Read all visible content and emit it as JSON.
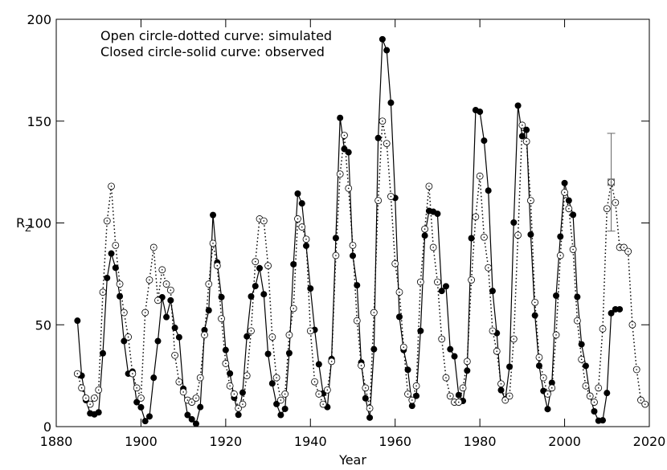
{
  "chart_data": {
    "type": "line",
    "annotations": [
      "Open circle-dotted curve: simulated",
      "Closed circle-solid curve: observed"
    ],
    "xlabel": "Year",
    "ylabel": "R",
    "ylabel_sub": "Z",
    "xlim": [
      1880,
      2020
    ],
    "xticks": [
      1880,
      1900,
      1920,
      1940,
      1960,
      1980,
      2000,
      2020
    ],
    "ylim": [
      0,
      200
    ],
    "yticks": [
      0,
      50,
      100,
      150,
      200
    ],
    "color": "#000000",
    "series": [
      {
        "marker": "filled",
        "line": "solid",
        "x": [
          1885,
          1886,
          1887,
          1888,
          1889,
          1890,
          1891,
          1892,
          1893,
          1894,
          1895,
          1896,
          1897,
          1898,
          1899,
          1900,
          1901,
          1902,
          1903,
          1904,
          1905,
          1906,
          1907,
          1908,
          1909,
          1910,
          1911,
          1912,
          1913,
          1914,
          1915,
          1916,
          1917,
          1918,
          1919,
          1920,
          1921,
          1922,
          1923,
          1924,
          1925,
          1926,
          1927,
          1928,
          1929,
          1930,
          1931,
          1932,
          1933,
          1934,
          1935,
          1936,
          1937,
          1938,
          1939,
          1940,
          1941,
          1942,
          1943,
          1944,
          1945,
          1946,
          1947,
          1948,
          1949,
          1950,
          1951,
          1952,
          1953,
          1954,
          1955,
          1956,
          1957,
          1958,
          1959,
          1960,
          1961,
          1962,
          1963,
          1964,
          1965,
          1966,
          1967,
          1968,
          1969,
          1970,
          1971,
          1972,
          1973,
          1974,
          1975,
          1976,
          1977,
          1978,
          1979,
          1980,
          1981,
          1982,
          1983,
          1984,
          1985,
          1986,
          1987,
          1988,
          1989,
          1990,
          1991,
          1992,
          1993,
          1994,
          1995,
          1996,
          1997,
          1998,
          1999,
          2000,
          2001,
          2002,
          2003,
          2004,
          2005,
          2006,
          2007,
          2008,
          2009,
          2010,
          2011,
          2012,
          2013
        ],
        "values": [
          52,
          25,
          13,
          6.5,
          6,
          7,
          36,
          73,
          85,
          78,
          64,
          42,
          26,
          27,
          12,
          9.5,
          2.7,
          5,
          24,
          42,
          63.5,
          53.8,
          62,
          48.5,
          43.9,
          18.6,
          5.7,
          3.6,
          1.4,
          9.6,
          47.4,
          57.1,
          103.9,
          80.6,
          63.6,
          37.6,
          26.1,
          14.2,
          5.8,
          16.7,
          44.3,
          63.9,
          69,
          77.8,
          65,
          35.7,
          21.2,
          11.1,
          5.7,
          8.7,
          36.1,
          79.7,
          114.4,
          109.6,
          88.8,
          67.8,
          47.5,
          30.6,
          16.3,
          9.6,
          33.2,
          92.6,
          151.6,
          136.3,
          134.7,
          83.9,
          69.4,
          31.5,
          13.9,
          4.4,
          38,
          141.7,
          190.2,
          184.8,
          159,
          112.3,
          53.9,
          37.6,
          27.9,
          10.2,
          15.1,
          47,
          93.8,
          105.9,
          105.5,
          104.5,
          66.6,
          68.9,
          38,
          34.5,
          15.5,
          12.6,
          27.5,
          92.5,
          155.4,
          154.6,
          140.4,
          115.9,
          66.6,
          45.9,
          17.9,
          13.4,
          29.4,
          100.2,
          157.6,
          142.6,
          145.7,
          94.3,
          54.6,
          29.9,
          17.5,
          8.6,
          21.5,
          64.3,
          93.3,
          119.6,
          111,
          104,
          63.7,
          40.4,
          29.8,
          15.2,
          7.5,
          2.9,
          3.1,
          16.5,
          55.7,
          57.6,
          57.6
        ]
      },
      {
        "marker": "open",
        "line": "dotted",
        "x": [
          1885,
          1886,
          1887,
          1888,
          1889,
          1890,
          1891,
          1892,
          1893,
          1894,
          1895,
          1896,
          1897,
          1898,
          1899,
          1900,
          1901,
          1902,
          1903,
          1904,
          1905,
          1906,
          1907,
          1908,
          1909,
          1910,
          1911,
          1912,
          1913,
          1914,
          1915,
          1916,
          1917,
          1918,
          1919,
          1920,
          1921,
          1922,
          1923,
          1924,
          1925,
          1926,
          1927,
          1928,
          1929,
          1930,
          1931,
          1932,
          1933,
          1934,
          1935,
          1936,
          1937,
          1938,
          1939,
          1940,
          1941,
          1942,
          1943,
          1944,
          1945,
          1946,
          1947,
          1948,
          1949,
          1950,
          1951,
          1952,
          1953,
          1954,
          1955,
          1956,
          1957,
          1958,
          1959,
          1960,
          1961,
          1962,
          1963,
          1964,
          1965,
          1966,
          1967,
          1968,
          1969,
          1970,
          1971,
          1972,
          1973,
          1974,
          1975,
          1976,
          1977,
          1978,
          1979,
          1980,
          1981,
          1982,
          1983,
          1984,
          1985,
          1986,
          1987,
          1988,
          1989,
          1990,
          1991,
          1992,
          1993,
          1994,
          1995,
          1996,
          1997,
          1998,
          1999,
          2000,
          2001,
          2002,
          2003,
          2004,
          2005,
          2006,
          2007,
          2008,
          2009,
          2010,
          2011,
          2012,
          2013,
          2014,
          2015,
          2016,
          2017,
          2018,
          2019
        ],
        "values": [
          26,
          19,
          14,
          11,
          14,
          18,
          66,
          101,
          118,
          89,
          70,
          56,
          44,
          26,
          19,
          14,
          56,
          72,
          88,
          62,
          77,
          70,
          67,
          35,
          22,
          17,
          13,
          12,
          14,
          24,
          45,
          70,
          90,
          79,
          53,
          31,
          20,
          16,
          9,
          11,
          25,
          47,
          81,
          102,
          101,
          79,
          44,
          24,
          13,
          16,
          45,
          58,
          102,
          98,
          92,
          47,
          22,
          16,
          11,
          18,
          32,
          84,
          124,
          143,
          117,
          89,
          52,
          30,
          19,
          9,
          56,
          111,
          150,
          139,
          113,
          80,
          66,
          39,
          16,
          13,
          20,
          71,
          97,
          118,
          88,
          71,
          43,
          24,
          15,
          12,
          12,
          19,
          32,
          72,
          103,
          123,
          93,
          78,
          47,
          37,
          21,
          13,
          15,
          43,
          94,
          148,
          140,
          111,
          61,
          34,
          24,
          16,
          19,
          45,
          84,
          115,
          107,
          87,
          52,
          33,
          20,
          15,
          12,
          19,
          48,
          107,
          120,
          110,
          88,
          88,
          86,
          50,
          28,
          13,
          11
        ]
      }
    ],
    "error_bar": {
      "x": 2011,
      "value": 120,
      "error": 24
    }
  }
}
